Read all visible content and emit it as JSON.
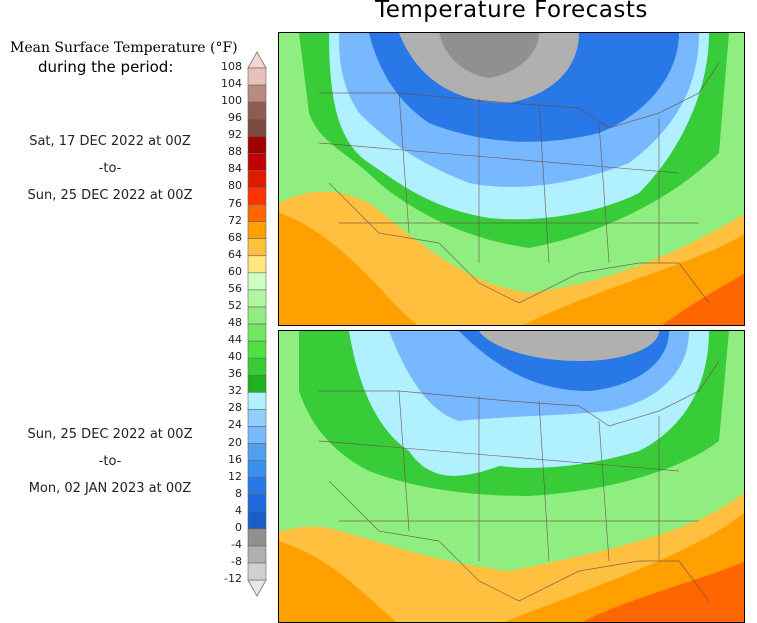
{
  "title": "Temperature Forecasts",
  "legend": {
    "heading": "Mean Surface Temperature (°F)",
    "subheading": "during the period:",
    "ticks": [
      "108",
      "104",
      "100",
      "96",
      "92",
      "88",
      "84",
      "80",
      "76",
      "72",
      "68",
      "64",
      "60",
      "56",
      "52",
      "48",
      "44",
      "40",
      "36",
      "32",
      "28",
      "24",
      "20",
      "16",
      "12",
      "8",
      "4",
      "0",
      "-4",
      "-8",
      "-12"
    ],
    "colors": [
      "#e6c2ba",
      "#b88a80",
      "#8e5c50",
      "#7a4a3e",
      "#a00000",
      "#c00000",
      "#e01a00",
      "#ff3300",
      "#ff6600",
      "#ffa000",
      "#ffc040",
      "#ffe680",
      "#ccffc0",
      "#b0f8a0",
      "#90ee80",
      "#70e860",
      "#50e040",
      "#38cc38",
      "#20b020",
      "#b0f0ff",
      "#90d0ff",
      "#78b8ff",
      "#50a0f0",
      "#3890f0",
      "#2878e8",
      "#1e68e0",
      "#1860c8",
      "#909090",
      "#b0b0b0",
      "#d0d0d0"
    ],
    "above_color": "#f4d8d0",
    "below_color": "#e8e8e8"
  },
  "periods": [
    {
      "start": "Sat, 17 DEC 2022 at 00Z",
      "sep": "-to-",
      "end": "Sun, 25 DEC 2022 at 00Z"
    },
    {
      "start": "Sun, 25 DEC 2022 at 00Z",
      "sep": "-to-",
      "end": "Mon, 02 JAN 2023 at 00Z"
    }
  ]
}
